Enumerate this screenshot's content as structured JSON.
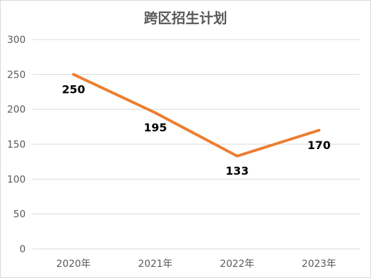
{
  "chart_data": {
    "type": "line",
    "title": "跨区招生计划",
    "xlabel": "",
    "ylabel": "",
    "categories": [
      "2020年",
      "2021年",
      "2022年",
      "2023年"
    ],
    "series": [
      {
        "values": [
          250,
          195,
          133,
          170
        ],
        "color": "#ed7d31"
      }
    ],
    "data_labels": [
      "250",
      "195",
      "133",
      "170"
    ],
    "ylim": [
      0,
      300
    ],
    "y_ticks": [
      "0",
      "50",
      "100",
      "150",
      "200",
      "250",
      "300"
    ],
    "grid": true,
    "legend": "none"
  }
}
